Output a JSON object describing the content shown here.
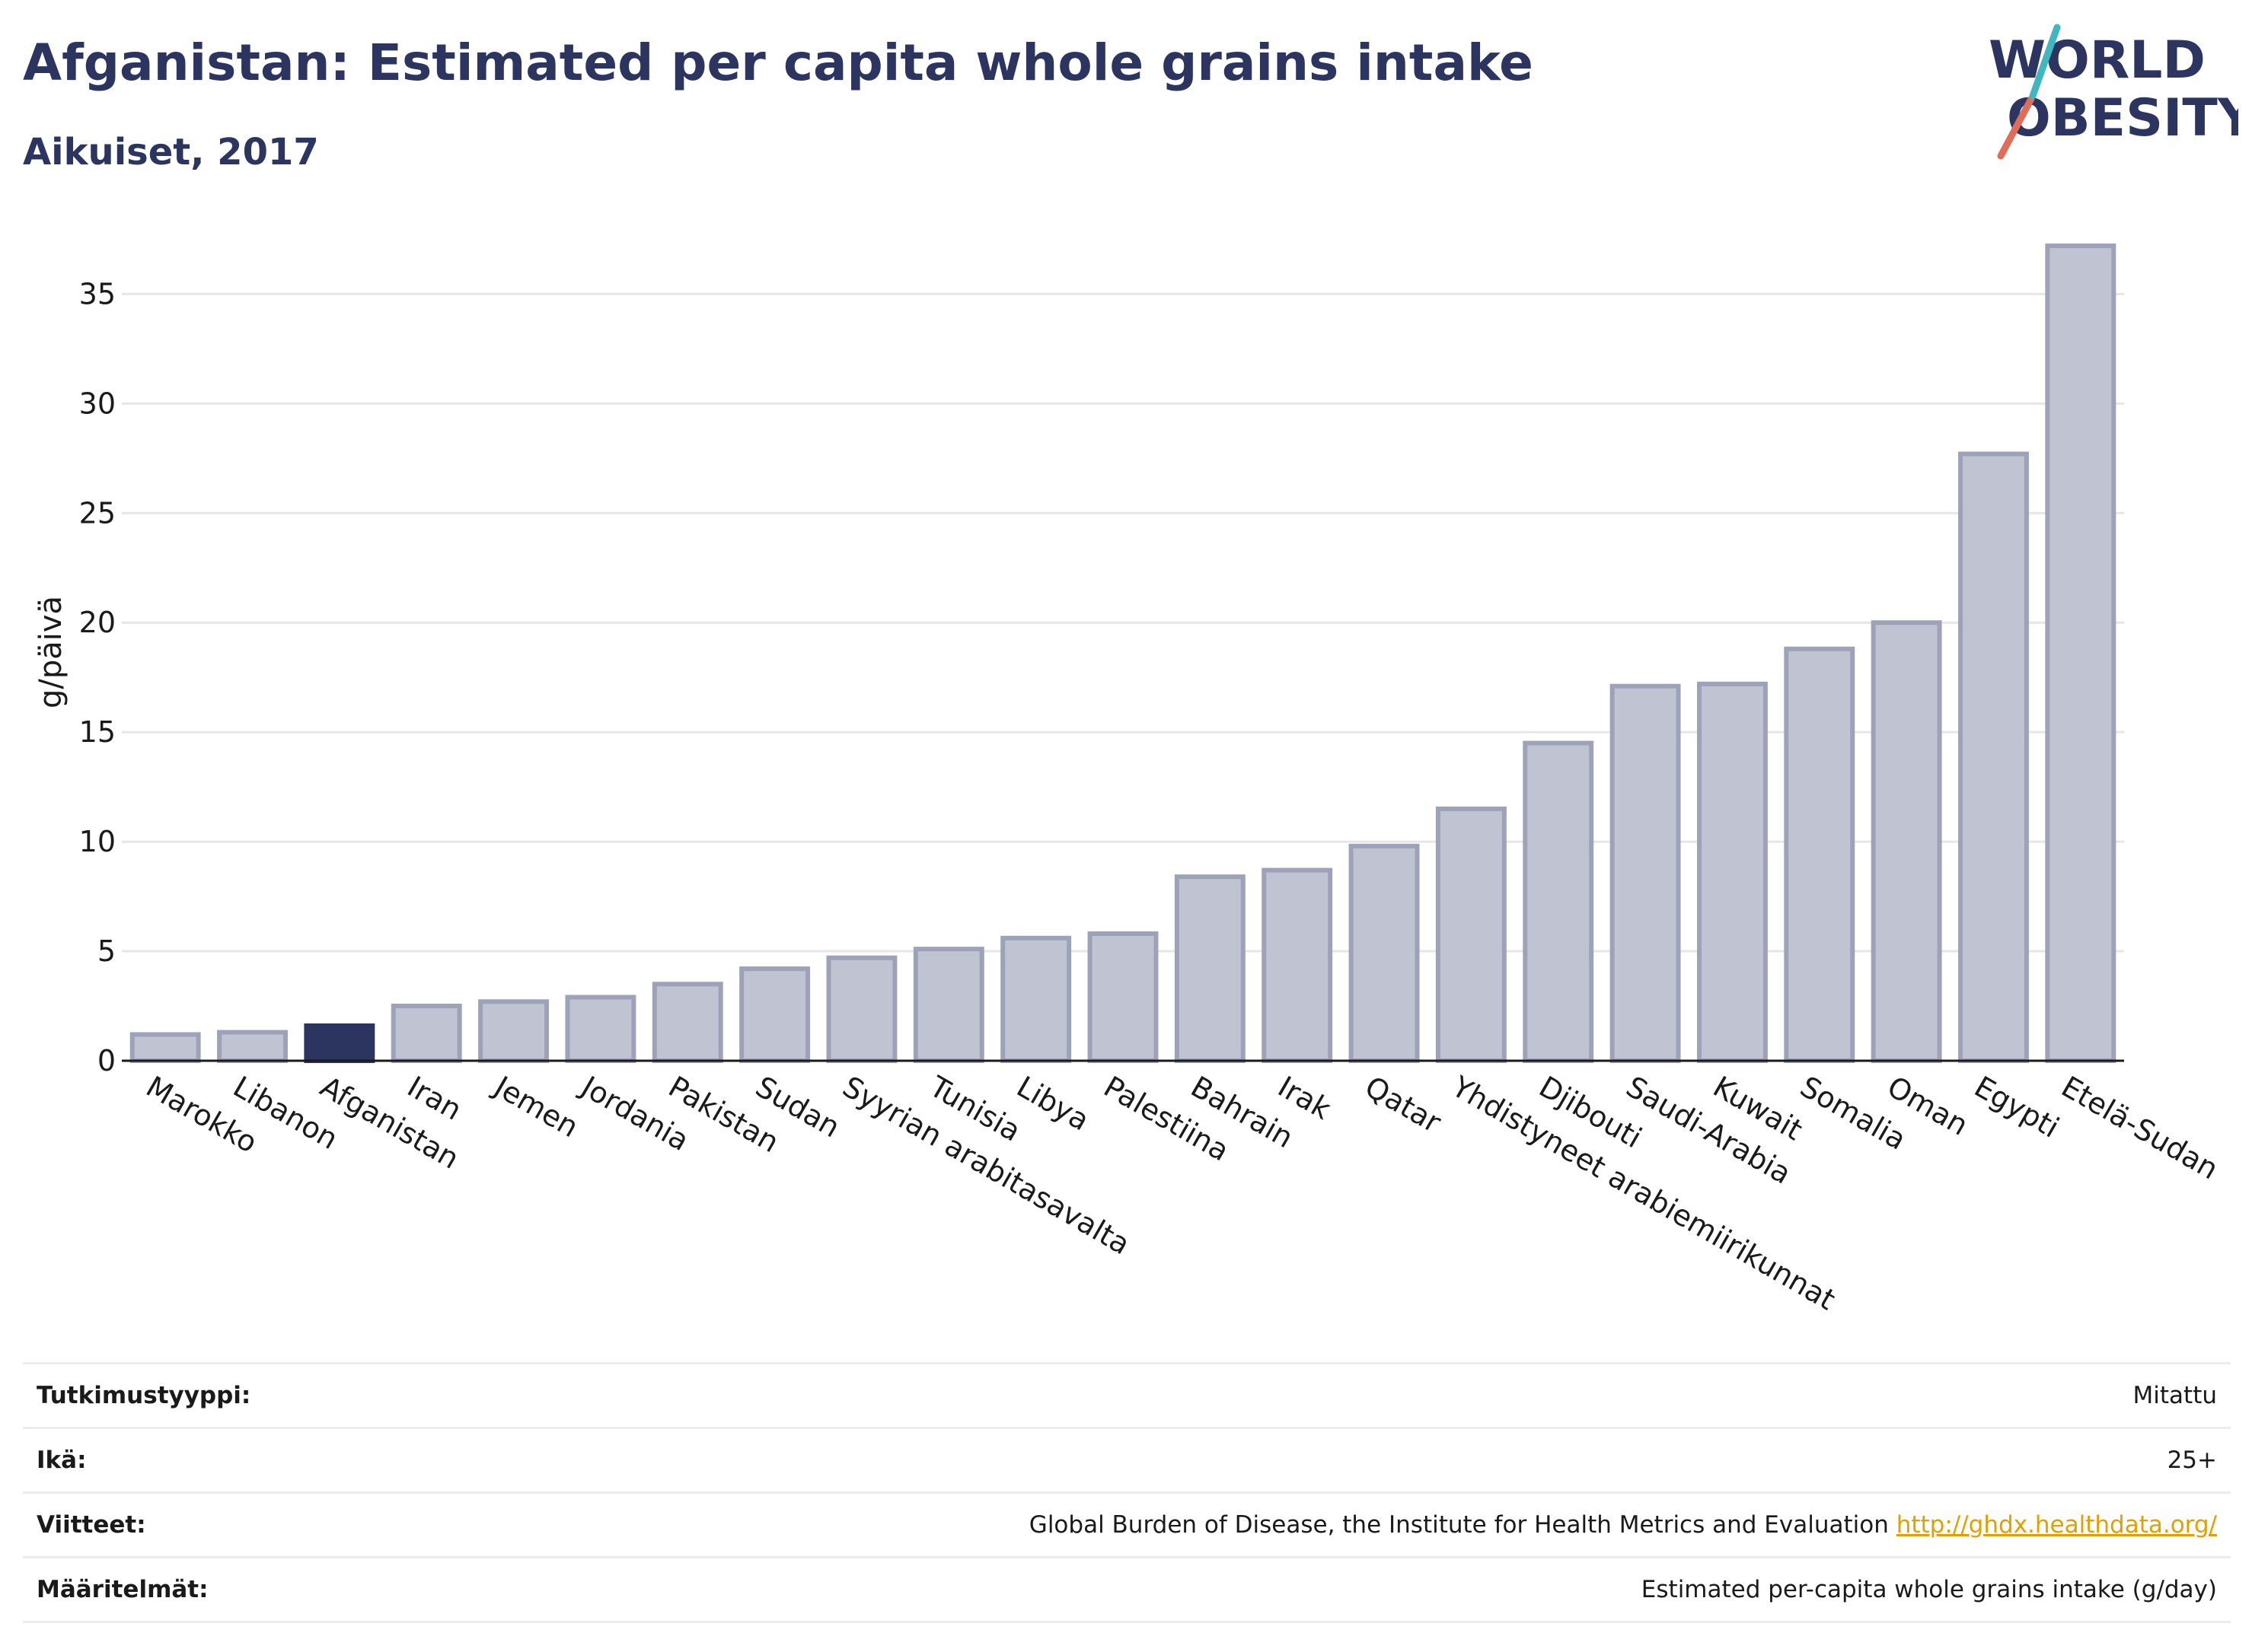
{
  "header": {
    "title": "Afganistan: Estimated per capita whole grains intake",
    "subtitle": "Aikuiset, 2017"
  },
  "logo": {
    "line1": "WORLD",
    "line2": "OBESITY"
  },
  "colors": {
    "highlight": "#2b3560",
    "bar_fill": "#c0c3d1",
    "bar_stroke": "#9ea2b8",
    "grid": "#e6e6e6"
  },
  "chart_data": {
    "type": "bar",
    "ylabel": "g/päivä",
    "ylim": [
      0,
      38
    ],
    "yticks": [
      0,
      5,
      10,
      15,
      20,
      25,
      30,
      35
    ],
    "grid": true,
    "highlight": "Afganistan",
    "categories": [
      "Marokko",
      "Libanon",
      "Afganistan",
      "Iran",
      "Jemen",
      "Jordania",
      "Pakistan",
      "Sudan",
      "Syyrian arabitasavalta",
      "Tunisia",
      "Libya",
      "Palestiina",
      "Bahrain",
      "Irak",
      "Qatar",
      "Yhdistyneet arabiemiirikunnat",
      "Djibouti",
      "Saudi-Arabia",
      "Kuwait",
      "Somalia",
      "Oman",
      "Egypti",
      "Etelä-Sudan"
    ],
    "values": [
      1.2,
      1.3,
      1.6,
      2.5,
      2.7,
      2.9,
      3.5,
      4.2,
      4.7,
      5.1,
      5.6,
      5.8,
      8.4,
      8.7,
      9.8,
      11.5,
      14.5,
      17.1,
      17.2,
      18.8,
      20.0,
      27.7,
      37.2
    ]
  },
  "info": [
    {
      "key": "Tutkimustyyppi:",
      "value": "Mitattu"
    },
    {
      "key": "Ikä:",
      "value": "25+"
    },
    {
      "key": "Viitteet:",
      "value": "Global Burden of Disease, the Institute for Health Metrics and Evaluation",
      "link": "http://ghdx.healthdata.org/"
    },
    {
      "key": "Määritelmät:",
      "value": "Estimated per-capita whole grains intake (g/day)"
    }
  ]
}
